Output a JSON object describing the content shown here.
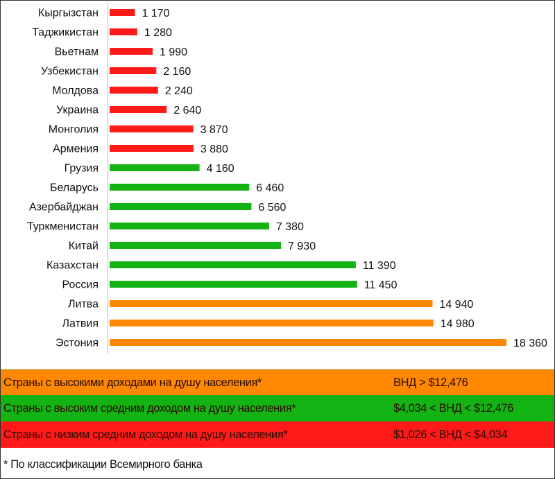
{
  "chart_data": {
    "type": "bar",
    "orientation": "horizontal",
    "title": "",
    "xlabel": "",
    "ylabel": "",
    "xlim": [
      0,
      18360
    ],
    "grid": false,
    "categories": [
      "Кыргызстан",
      "Таджикистан",
      "Вьетнам",
      "Узбекистан",
      "Молдова",
      "Украина",
      "Монголия",
      "Армения",
      "Грузия",
      "Беларусь",
      "Азербайджан",
      "Туркменистан",
      "Китай",
      "Казахстан",
      "Россия",
      "Литва",
      "Латвия",
      "Эстония"
    ],
    "values": [
      1170,
      1280,
      1990,
      2160,
      2240,
      2640,
      3870,
      3880,
      4160,
      6460,
      6560,
      7380,
      7930,
      11390,
      11450,
      14940,
      14980,
      18360
    ],
    "value_labels": [
      "1 170",
      "1 280",
      "1 990",
      "2 160",
      "2 240",
      "2 640",
      "3 870",
      "3 880",
      "4 160",
      "6 460",
      "6 560",
      "7 380",
      "7 930",
      "11 390",
      "11 450",
      "14 940",
      "14 980",
      "18 360"
    ],
    "groups": [
      "low",
      "low",
      "low",
      "low",
      "low",
      "low",
      "low",
      "low",
      "mid",
      "mid",
      "mid",
      "mid",
      "mid",
      "mid",
      "mid",
      "high",
      "high",
      "high"
    ]
  },
  "colors": {
    "low": "#ff1a1a",
    "mid": "#12b312",
    "high": "#ff8800"
  },
  "legend": {
    "high": {
      "label": "Страны с высокими доходами на душу населения*",
      "range": "ВНД > $12,476"
    },
    "mid": {
      "label": "Страны с высоким средним доходом на душу населения*",
      "range": "$4,034 < ВНД < $12,476"
    },
    "low": {
      "label": "Страны с низким средним доходом на душу населения*",
      "range": "$1,026 < ВНД < $4,034"
    }
  },
  "footnote": "* По классификации Всемирного банка"
}
